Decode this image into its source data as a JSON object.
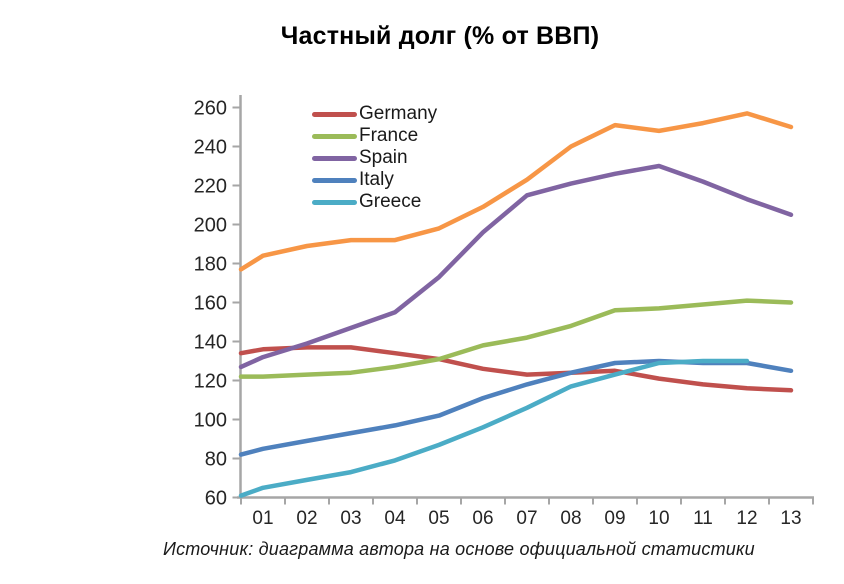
{
  "title": "Частный долг (% от ВВП)",
  "caption": "Источник: диаграмма автора на основе официальной статистики",
  "colors": {
    "axis": "#A6A6A6",
    "label_text": "#262626",
    "title_text": "#000000"
  },
  "chart_data": {
    "type": "line",
    "title": "Частный долг (% от ВВП)",
    "xlabel": "",
    "ylabel": "",
    "x_labels": [
      "01",
      "02",
      "03",
      "04",
      "05",
      "06",
      "07",
      "08",
      "09",
      "10",
      "11",
      "12",
      "13"
    ],
    "y_axis": {
      "min": 60,
      "max": 260,
      "tick_step": 20,
      "ticks": [
        60,
        80,
        100,
        120,
        140,
        160,
        180,
        200,
        220,
        240,
        260
      ]
    },
    "grid": "off",
    "legend_position": "top-left-inside",
    "series": [
      {
        "name": "Germany",
        "color": "#C0504D",
        "in_legend": true,
        "edge_value": 134,
        "values": [
          136,
          137,
          137,
          134,
          131,
          126,
          123,
          124,
          125,
          121,
          118,
          116,
          115
        ]
      },
      {
        "name": "France",
        "color": "#9BBB59",
        "in_legend": true,
        "edge_value": 122,
        "values": [
          122,
          123,
          124,
          127,
          131,
          138,
          142,
          148,
          156,
          157,
          159,
          161,
          160
        ]
      },
      {
        "name": "Spain",
        "color": "#8064A2",
        "in_legend": true,
        "edge_value": 127,
        "values": [
          132,
          139,
          147,
          155,
          173,
          196,
          215,
          221,
          226,
          230,
          222,
          213,
          205
        ]
      },
      {
        "name": "Italy",
        "color": "#4F81BD",
        "in_legend": true,
        "edge_value": 82,
        "values": [
          85,
          89,
          93,
          97,
          102,
          111,
          118,
          124,
          129,
          130,
          129,
          129,
          125
        ]
      },
      {
        "name": "Greece",
        "color": "#4BACC6",
        "in_legend": true,
        "edge_value": 61,
        "values": [
          65,
          69,
          73,
          79,
          87,
          96,
          106,
          117,
          123,
          129,
          130,
          130,
          null
        ]
      },
      {
        "name": "",
        "color": "#F79646",
        "in_legend": false,
        "edge_value": 177,
        "values": [
          184,
          189,
          192,
          192,
          198,
          209,
          223,
          240,
          251,
          248,
          252,
          257,
          250
        ]
      }
    ]
  }
}
